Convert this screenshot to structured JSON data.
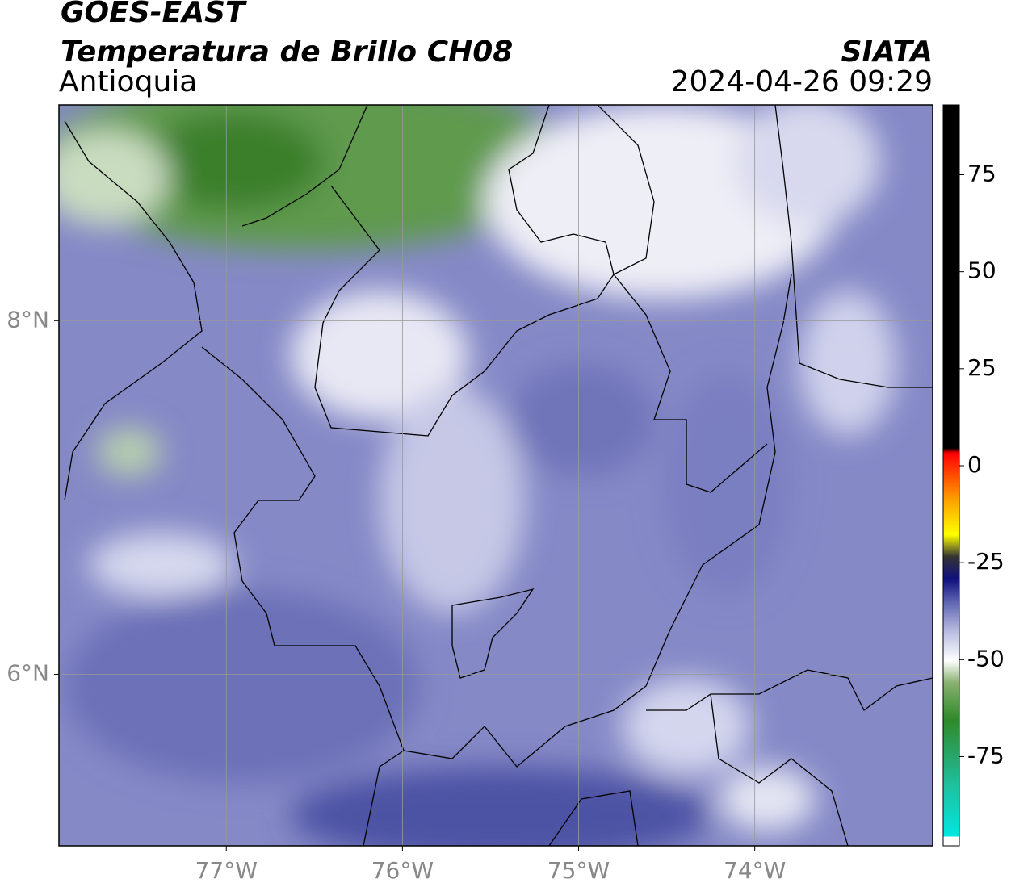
{
  "header": {
    "satellite": "GOES-EAST",
    "product": "Temperatura de Brillo CH08",
    "region": "Antioquia",
    "agency": "SIATA",
    "timestamp": "2024-04-26 09:29"
  },
  "map": {
    "xlim": [
      -77.95,
      -72.99
    ],
    "ylim": [
      5.03,
      9.22
    ],
    "xticks": [
      {
        "value": -77,
        "label": "77°W"
      },
      {
        "value": -76,
        "label": "76°W"
      },
      {
        "value": -75,
        "label": "75°W"
      },
      {
        "value": -74,
        "label": "74°W"
      }
    ],
    "yticks": [
      {
        "value": 8,
        "label": "8°N"
      },
      {
        "value": 6,
        "label": "6°N"
      }
    ],
    "grid": true
  },
  "colorbar": {
    "lim": [
      -98,
      93
    ],
    "ticks": [
      75,
      50,
      25,
      0,
      -25,
      -50,
      -75
    ]
  }
}
